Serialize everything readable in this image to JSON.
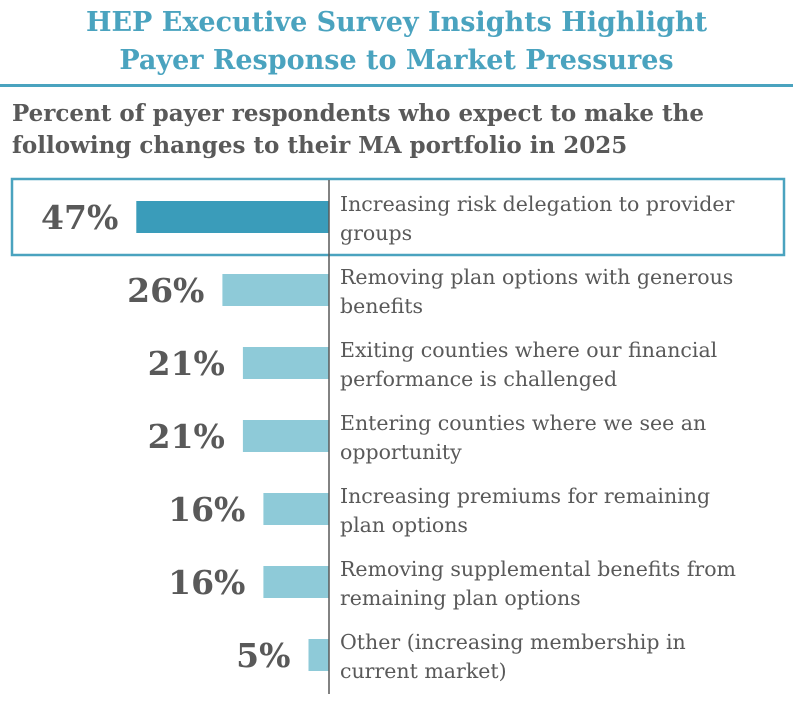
{
  "header": {
    "title_line1": "HEP Executive Survey Insights Highlight",
    "title_line2": "Payer Response to Market Pressures",
    "subtitle_line1": "Percent of payer respondents who expect to make the",
    "subtitle_line2": "following changes to their MA portfolio in 2025"
  },
  "colors": {
    "accent": "#4aa3bf",
    "highlight_bar": "#3a9cba",
    "bar": "#8ecad8",
    "text": "#595959",
    "axis": "#595959"
  },
  "chart_data": {
    "type": "bar",
    "orientation": "horizontal",
    "unit": "%",
    "categories": [
      [
        "Increasing risk delegation to provider",
        "groups"
      ],
      [
        "Removing plan options with generous",
        "benefits"
      ],
      [
        "Exiting counties where our financial",
        "performance is challenged"
      ],
      [
        "Entering counties where we see an",
        "opportunity"
      ],
      [
        "Increasing premiums for remaining",
        "plan options"
      ],
      [
        "Removing supplemental benefits from",
        "remaining plan options"
      ],
      [
        "Other (increasing membership in",
        "current market)"
      ]
    ],
    "values": [
      47,
      26,
      21,
      21,
      16,
      16,
      5
    ],
    "value_labels": [
      "47%",
      "26%",
      "21%",
      "21%",
      "16%",
      "16%",
      "5%"
    ],
    "highlighted_index": 0
  }
}
